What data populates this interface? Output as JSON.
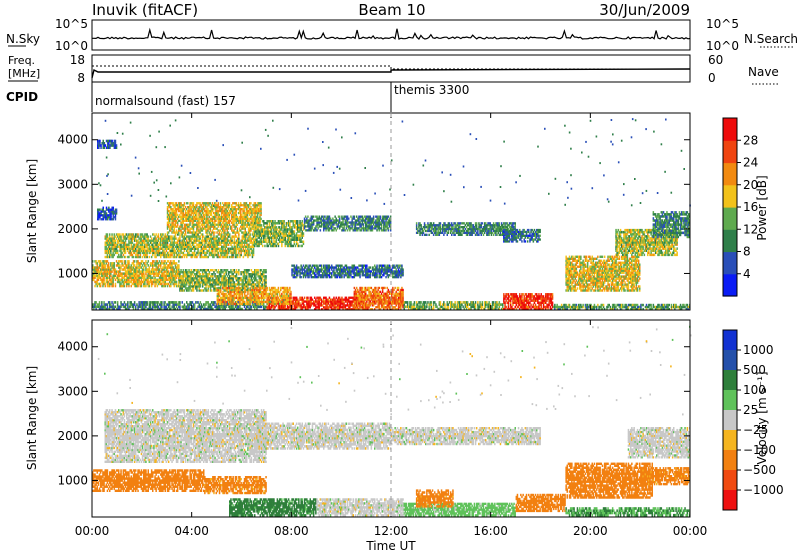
{
  "header": {
    "station": "Inuvik (fitACF)",
    "beam": "Beam 10",
    "date": "30/Jun/2009"
  },
  "top_panels": {
    "nsky_label": "N.Sky",
    "nsky_ticks": [
      "10^5",
      "10^0"
    ],
    "nsearch_label": "N.Search",
    "nsearch_ticks": [
      "10^5",
      "10^0"
    ],
    "freq_label_line1": "Freq.",
    "freq_label_line2": "[MHz]",
    "freq_ticks": [
      "18",
      "8"
    ],
    "nave_label": "Nave",
    "nave_ticks": [
      "60",
      "0"
    ],
    "cpid_label": "CPID",
    "cpid_modes": [
      {
        "name": "normalsound (fast) 157",
        "start_hour": 0
      },
      {
        "name": "themis 3300",
        "start_hour": 12
      }
    ]
  },
  "colors": {
    "power_scale": [
      "#0a1cf5",
      "#2a4fb8",
      "#2f7f4a",
      "#5faa4f",
      "#f2c21b",
      "#f28a10",
      "#f04410",
      "#ee0a0a"
    ],
    "velocity_scale": [
      "#1232d2",
      "#2450aa",
      "#2e7f3b",
      "#5fc25a",
      "#c8c8c8",
      "#f5b520",
      "#f28010",
      "#f04a10",
      "#ee1010"
    ]
  },
  "chart_data": [
    {
      "type": "heatmap",
      "name": "power",
      "xlabel": "",
      "ylabel": "Slant Range [km]",
      "xlim": [
        0,
        24
      ],
      "ylim": [
        180,
        4600
      ],
      "x_ticks": [
        "00:00",
        "04:00",
        "08:00",
        "12:00",
        "16:00",
        "20:00",
        "00:00"
      ],
      "y_ticks": [
        1000,
        2000,
        3000,
        4000
      ],
      "colorbar_label": "Power [dB]",
      "colorbar_ticks": [
        "4",
        "8",
        "12",
        "16",
        "20",
        "24",
        "28"
      ],
      "colorbar_range": [
        0,
        30
      ],
      "bands": [
        {
          "t0": 0.0,
          "t1": 7.0,
          "r0": 180,
          "r1": 380,
          "v": 10
        },
        {
          "t0": 7.0,
          "t1": 11.0,
          "r0": 180,
          "r1": 480,
          "v": 28
        },
        {
          "t0": 10.5,
          "t1": 12.5,
          "r0": 180,
          "r1": 700,
          "v": 24
        },
        {
          "t0": 12.5,
          "t1": 16.5,
          "r0": 180,
          "r1": 380,
          "v": 14
        },
        {
          "t0": 16.5,
          "t1": 18.5,
          "r0": 180,
          "r1": 560,
          "v": 28
        },
        {
          "t0": 18.5,
          "t1": 24.0,
          "r0": 180,
          "r1": 320,
          "v": 12
        },
        {
          "t0": 0.0,
          "t1": 3.5,
          "r0": 700,
          "r1": 1300,
          "v": 18
        },
        {
          "t0": 3.5,
          "t1": 7.0,
          "r0": 600,
          "r1": 1100,
          "v": 14
        },
        {
          "t0": 5.0,
          "t1": 8.0,
          "r0": 300,
          "r1": 700,
          "v": 20
        },
        {
          "t0": 0.5,
          "t1": 6.5,
          "r0": 1350,
          "r1": 1900,
          "v": 16
        },
        {
          "t0": 3.0,
          "t1": 6.8,
          "r0": 1900,
          "r1": 2600,
          "v": 18
        },
        {
          "t0": 6.5,
          "t1": 8.5,
          "r0": 1600,
          "r1": 2200,
          "v": 14
        },
        {
          "t0": 8.5,
          "t1": 12.0,
          "r0": 1950,
          "r1": 2300,
          "v": 10
        },
        {
          "t0": 13.0,
          "t1": 17.0,
          "r0": 1850,
          "r1": 2150,
          "v": 10
        },
        {
          "t0": 16.5,
          "t1": 18.0,
          "r0": 1700,
          "r1": 2000,
          "v": 8
        },
        {
          "t0": 19.0,
          "t1": 22.0,
          "r0": 600,
          "r1": 1400,
          "v": 18
        },
        {
          "t0": 21.0,
          "t1": 23.5,
          "r0": 1400,
          "r1": 2000,
          "v": 16
        },
        {
          "t0": 22.5,
          "t1": 24.0,
          "r0": 1800,
          "r1": 2400,
          "v": 10
        },
        {
          "t0": 0.2,
          "t1": 1.0,
          "r0": 2200,
          "r1": 2500,
          "v": 6
        },
        {
          "t0": 0.2,
          "t1": 1.0,
          "r0": 3800,
          "r1": 4000,
          "v": 6
        },
        {
          "t0": 8.0,
          "t1": 12.5,
          "r0": 900,
          "r1": 1200,
          "v": 8
        }
      ]
    },
    {
      "type": "heatmap",
      "name": "velocity",
      "xlabel": "Time UT",
      "ylabel": "Slant Range [km]",
      "xlim": [
        0,
        24
      ],
      "ylim": [
        180,
        4600
      ],
      "x_ticks": [
        "00:00",
        "04:00",
        "08:00",
        "12:00",
        "16:00",
        "20:00",
        "00:00"
      ],
      "y_ticks": [
        1000,
        2000,
        3000,
        4000
      ],
      "colorbar_label": "Velocity [m s⁻¹]",
      "colorbar_ticks": [
        "1000",
        "500",
        "100",
        "25",
        "−25",
        "−100",
        "−500",
        "−1000"
      ],
      "bands": [
        {
          "t0": 0.0,
          "t1": 4.5,
          "r0": 750,
          "r1": 1250,
          "v": -300
        },
        {
          "t0": 4.5,
          "t1": 7.0,
          "r0": 700,
          "r1": 1100,
          "v": -150
        },
        {
          "t0": 0.5,
          "t1": 7.0,
          "r0": 1400,
          "r1": 2600,
          "v": 0
        },
        {
          "t0": 6.5,
          "t1": 12.0,
          "r0": 1700,
          "r1": 2300,
          "v": 0
        },
        {
          "t0": 12.0,
          "t1": 18.0,
          "r0": 1800,
          "r1": 2200,
          "v": 0
        },
        {
          "t0": 5.5,
          "t1": 9.0,
          "r0": 200,
          "r1": 600,
          "v": 150
        },
        {
          "t0": 9.0,
          "t1": 12.5,
          "r0": 200,
          "r1": 600,
          "v": 0
        },
        {
          "t0": 12.5,
          "t1": 17.0,
          "r0": 200,
          "r1": 500,
          "v": 50
        },
        {
          "t0": 13.0,
          "t1": 14.5,
          "r0": 400,
          "r1": 800,
          "v": -150
        },
        {
          "t0": 17.0,
          "t1": 19.0,
          "r0": 300,
          "r1": 700,
          "v": -200
        },
        {
          "t0": 19.0,
          "t1": 22.5,
          "r0": 600,
          "r1": 1400,
          "v": -300
        },
        {
          "t0": 22.0,
          "t1": 24.0,
          "r0": 900,
          "r1": 1300,
          "v": -150
        },
        {
          "t0": 19.0,
          "t1": 24.0,
          "r0": 200,
          "r1": 400,
          "v": 100
        },
        {
          "t0": 21.5,
          "t1": 24.0,
          "r0": 1500,
          "r1": 2200,
          "v": 0
        }
      ]
    }
  ]
}
